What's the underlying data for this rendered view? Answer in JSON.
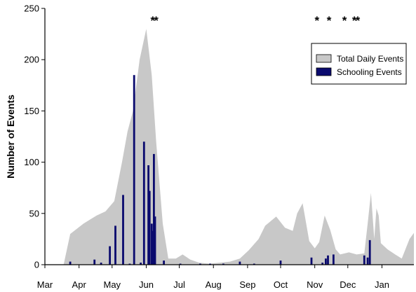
{
  "chart_data": {
    "type": "area",
    "title": "",
    "ylabel": "Number of Events",
    "xlabel": "",
    "ylim": [
      0,
      250
    ],
    "yticks": [
      0,
      50,
      100,
      150,
      200,
      250
    ],
    "x_unit": "days since Mar 1",
    "xlim": [
      0,
      335
    ],
    "xticks": [
      {
        "label": "Mar",
        "day": 0
      },
      {
        "label": "Apr",
        "day": 31
      },
      {
        "label": "May",
        "day": 61
      },
      {
        "label": "Jun",
        "day": 92
      },
      {
        "label": "Jul",
        "day": 122
      },
      {
        "label": "Aug",
        "day": 153
      },
      {
        "label": "Sep",
        "day": 184
      },
      {
        "label": "Oct",
        "day": 214
      },
      {
        "label": "Nov",
        "day": 245
      },
      {
        "label": "Dec",
        "day": 275
      },
      {
        "label": "Jan",
        "day": 306
      }
    ],
    "legend": {
      "position": "top-right",
      "entries": [
        "Total Daily Events",
        "Schooling Events"
      ]
    },
    "series": [
      {
        "name": "Total Daily Events",
        "kind": "area",
        "color": "#c8c8c8",
        "x": [
          17,
          23,
          35,
          47,
          55,
          63,
          70,
          75,
          80,
          86,
          92,
          97,
          101,
          104,
          107,
          112,
          119,
          125,
          132,
          140,
          149,
          159,
          168,
          177,
          185,
          194,
          200,
          210,
          218,
          225,
          229,
          234,
          240,
          245,
          249,
          254,
          259,
          264,
          268,
          276,
          283,
          290,
          293,
          296,
          299,
          301,
          303,
          305,
          311,
          318,
          324,
          331,
          335
        ],
        "y": [
          0,
          30,
          40,
          48,
          52,
          62,
          100,
          130,
          150,
          200,
          230,
          185,
          120,
          80,
          40,
          6,
          6,
          10,
          5,
          2,
          1,
          2,
          3,
          6,
          14,
          25,
          38,
          47,
          36,
          33,
          50,
          60,
          23,
          16,
          22,
          48,
          34,
          15,
          10,
          12,
          10,
          11,
          40,
          70,
          25,
          55,
          48,
          21,
          15,
          10,
          6,
          25,
          31
        ]
      },
      {
        "name": "Schooling Events",
        "kind": "bar",
        "color": "#0a0a6e",
        "x": [
          23,
          45,
          51,
          59,
          64,
          71,
          77,
          81,
          87,
          90,
          94,
          95,
          97,
          98,
          99,
          100,
          108,
          123,
          141,
          150,
          162,
          177,
          190,
          214,
          242,
          252,
          255,
          257,
          262,
          290,
          293,
          295
        ],
        "y": [
          3,
          5,
          2,
          18,
          38,
          68,
          1,
          185,
          2,
          120,
          97,
          72,
          40,
          33,
          108,
          47,
          4,
          1,
          1,
          1,
          1,
          3,
          1,
          4,
          7,
          2,
          6,
          9,
          10,
          9,
          7,
          24
        ]
      }
    ],
    "annotations": {
      "marker_text": "*",
      "marker_days": [
        98,
        101,
        247,
        258,
        272,
        281,
        284
      ]
    }
  }
}
